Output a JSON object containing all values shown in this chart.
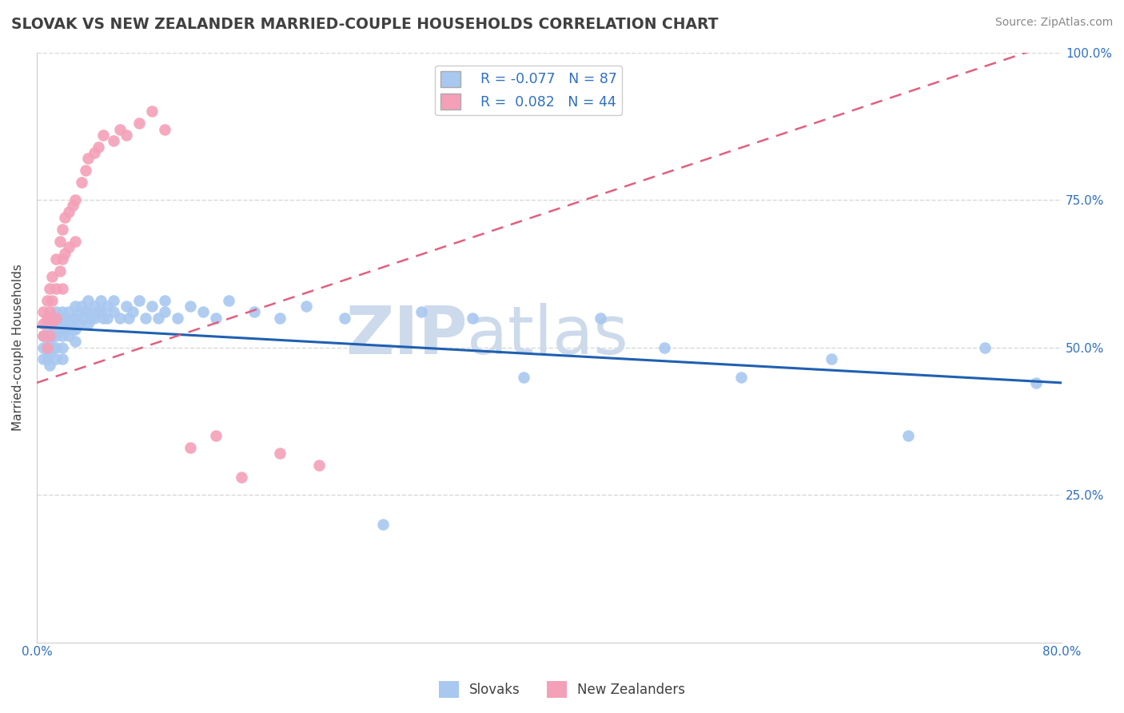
{
  "title": "SLOVAK VS NEW ZEALANDER MARRIED-COUPLE HOUSEHOLDS CORRELATION CHART",
  "source": "Source: ZipAtlas.com",
  "ylabel": "Married-couple Households",
  "xlim": [
    0.0,
    0.8
  ],
  "ylim": [
    0.0,
    1.0
  ],
  "ytick_positions": [
    0.25,
    0.5,
    0.75,
    1.0
  ],
  "xtick_positions": [
    0.0,
    0.8
  ],
  "xtick_labels": [
    "0.0%",
    "80.0%"
  ],
  "legend_entry1_r": "-0.077",
  "legend_entry1_n": "87",
  "legend_entry2_r": "0.082",
  "legend_entry2_n": "44",
  "legend_label1": "Slovaks",
  "legend_label2": "New Zealanders",
  "blue_color": "#a8c8f0",
  "pink_color": "#f4a0b8",
  "blue_line_color": "#2060b0",
  "pink_line_color": "#e06080",
  "title_color": "#404040",
  "source_color": "#888888",
  "background_color": "#ffffff",
  "grid_color": "#d8d8d8",
  "watermark_color": "#ccdaeb",
  "slovaks_x": [
    0.005,
    0.005,
    0.005,
    0.008,
    0.008,
    0.008,
    0.008,
    0.01,
    0.01,
    0.01,
    0.01,
    0.01,
    0.012,
    0.012,
    0.012,
    0.015,
    0.015,
    0.015,
    0.015,
    0.015,
    0.018,
    0.018,
    0.02,
    0.02,
    0.02,
    0.02,
    0.02,
    0.022,
    0.022,
    0.025,
    0.025,
    0.025,
    0.028,
    0.028,
    0.03,
    0.03,
    0.03,
    0.03,
    0.033,
    0.033,
    0.035,
    0.035,
    0.038,
    0.04,
    0.04,
    0.04,
    0.042,
    0.045,
    0.045,
    0.048,
    0.05,
    0.05,
    0.052,
    0.055,
    0.055,
    0.06,
    0.06,
    0.065,
    0.07,
    0.072,
    0.075,
    0.08,
    0.085,
    0.09,
    0.095,
    0.1,
    0.1,
    0.11,
    0.12,
    0.13,
    0.14,
    0.15,
    0.17,
    0.19,
    0.21,
    0.24,
    0.27,
    0.3,
    0.34,
    0.38,
    0.44,
    0.49,
    0.55,
    0.62,
    0.68,
    0.74,
    0.78
  ],
  "slovaks_y": [
    0.52,
    0.5,
    0.48,
    0.54,
    0.52,
    0.5,
    0.48,
    0.55,
    0.53,
    0.51,
    0.49,
    0.47,
    0.54,
    0.52,
    0.5,
    0.56,
    0.54,
    0.52,
    0.5,
    0.48,
    0.55,
    0.53,
    0.56,
    0.54,
    0.52,
    0.5,
    0.48,
    0.55,
    0.53,
    0.56,
    0.54,
    0.52,
    0.55,
    0.53,
    0.57,
    0.55,
    0.53,
    0.51,
    0.56,
    0.54,
    0.57,
    0.55,
    0.56,
    0.58,
    0.56,
    0.54,
    0.55,
    0.57,
    0.55,
    0.56,
    0.58,
    0.56,
    0.55,
    0.57,
    0.55,
    0.58,
    0.56,
    0.55,
    0.57,
    0.55,
    0.56,
    0.58,
    0.55,
    0.57,
    0.55,
    0.58,
    0.56,
    0.55,
    0.57,
    0.56,
    0.55,
    0.58,
    0.56,
    0.55,
    0.57,
    0.55,
    0.2,
    0.56,
    0.55,
    0.45,
    0.55,
    0.5,
    0.45,
    0.48,
    0.35,
    0.5,
    0.44
  ],
  "nzl_x": [
    0.005,
    0.005,
    0.005,
    0.008,
    0.008,
    0.008,
    0.01,
    0.01,
    0.01,
    0.012,
    0.012,
    0.012,
    0.015,
    0.015,
    0.015,
    0.018,
    0.018,
    0.02,
    0.02,
    0.02,
    0.022,
    0.022,
    0.025,
    0.025,
    0.028,
    0.03,
    0.03,
    0.035,
    0.038,
    0.04,
    0.045,
    0.048,
    0.052,
    0.06,
    0.065,
    0.07,
    0.08,
    0.09,
    0.1,
    0.12,
    0.14,
    0.16,
    0.19,
    0.22
  ],
  "nzl_y": [
    0.56,
    0.54,
    0.52,
    0.58,
    0.55,
    0.5,
    0.6,
    0.56,
    0.52,
    0.62,
    0.58,
    0.54,
    0.65,
    0.6,
    0.55,
    0.68,
    0.63,
    0.7,
    0.65,
    0.6,
    0.72,
    0.66,
    0.73,
    0.67,
    0.74,
    0.75,
    0.68,
    0.78,
    0.8,
    0.82,
    0.83,
    0.84,
    0.86,
    0.85,
    0.87,
    0.86,
    0.88,
    0.9,
    0.87,
    0.33,
    0.35,
    0.28,
    0.32,
    0.3
  ],
  "blue_trend_x": [
    0.0,
    0.8
  ],
  "blue_trend_y": [
    0.535,
    0.44
  ],
  "pink_trend_x": [
    0.0,
    0.8
  ],
  "pink_trend_y": [
    0.44,
    1.02
  ]
}
